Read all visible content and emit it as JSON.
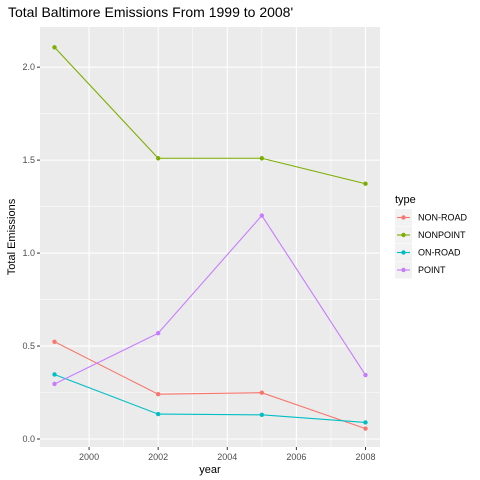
{
  "chart_data": {
    "type": "line",
    "title": "Total Baltimore Emissions From 1999 to 2008'",
    "xlabel": "year",
    "ylabel": "Total Emissions",
    "x": [
      1999,
      2002,
      2005,
      2008
    ],
    "xticks": [
      2000,
      2002,
      2004,
      2006,
      2008
    ],
    "yticks": [
      0.0,
      0.5,
      1.0,
      1.5,
      2.0
    ],
    "xtick_labels": [
      "2000",
      "2002",
      "2004",
      "2006",
      "2008"
    ],
    "ytick_labels": [
      "0.0",
      "0.5",
      "1.0",
      "1.5",
      "2.0"
    ],
    "xlim": [
      1998.58,
      2008.42
    ],
    "ylim": [
      -0.043,
      2.216
    ],
    "grid": true,
    "legend": {
      "title": "type",
      "placement": "right"
    },
    "series": [
      {
        "name": "NON-ROAD",
        "color": "#F8766D",
        "values": [
          0.523,
          0.241,
          0.249,
          0.056
        ]
      },
      {
        "name": "NONPOINT",
        "color": "#7CAE00",
        "values": [
          2.107,
          1.51,
          1.51,
          1.373
        ]
      },
      {
        "name": "ON-ROAD",
        "color": "#00BFC4",
        "values": [
          0.347,
          0.134,
          0.13,
          0.089
        ]
      },
      {
        "name": "POINT",
        "color": "#C77CFF",
        "values": [
          0.296,
          0.569,
          1.202,
          0.344
        ]
      }
    ]
  }
}
